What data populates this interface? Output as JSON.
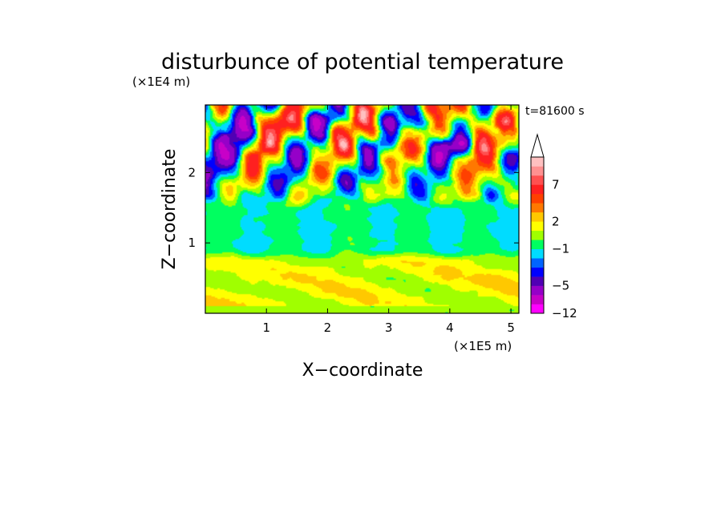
{
  "chart_data": {
    "type": "heatmap",
    "title": "disturbunce of potential temperature",
    "xlabel": "X−coordinate",
    "ylabel": "Z−coordinate",
    "x_unit": "(×1E5 m)",
    "y_unit": "(×1E4 m)",
    "time_label": "t=81600 s",
    "xlim": [
      0,
      5.13
    ],
    "ylim": [
      0,
      2.96
    ],
    "x_ticks": [
      {
        "value": 1,
        "label": "1"
      },
      {
        "value": 2,
        "label": "2"
      },
      {
        "value": 3,
        "label": "3"
      },
      {
        "value": 4,
        "label": "4"
      },
      {
        "value": 5,
        "label": "5"
      }
    ],
    "y_ticks": [
      {
        "value": 1,
        "label": "1"
      },
      {
        "value": 2,
        "label": "2"
      }
    ],
    "colorbar": {
      "levels": [
        -12,
        -9,
        -7,
        -5,
        -4,
        -3,
        -2,
        -1,
        0,
        1,
        2,
        3,
        4,
        5,
        7,
        8,
        9,
        10
      ],
      "colors": [
        "#ff00ff",
        "#c800c8",
        "#9600c8",
        "#5000b4",
        "#0000ff",
        "#0064ff",
        "#00dcff",
        "#00ff60",
        "#a0ff00",
        "#ffff00",
        "#ffc800",
        "#ff7800",
        "#ff4000",
        "#ff2020",
        "#ff5050",
        "#ff9090",
        "#ffc0c0"
      ],
      "labels": [
        {
          "value": -12,
          "label": "−12"
        },
        {
          "value": -5,
          "label": "−5"
        },
        {
          "value": -1,
          "label": "−1"
        },
        {
          "value": 2,
          "label": "2"
        },
        {
          "value": 7,
          "label": "7"
        }
      ],
      "extend": "max"
    },
    "field_description_rows": [
      {
        "z_range": [
          0,
          0.1
        ],
        "value_range": [
          0,
          2
        ]
      },
      {
        "z_range": [
          0.1,
          0.8
        ],
        "value_range": [
          0,
          3
        ]
      },
      {
        "z_range": [
          0.8,
          1.5
        ],
        "value_range": [
          -2,
          0
        ]
      },
      {
        "z_range": [
          1.5,
          2.96
        ],
        "value_range": [
          -7,
          8
        ]
      }
    ]
  }
}
